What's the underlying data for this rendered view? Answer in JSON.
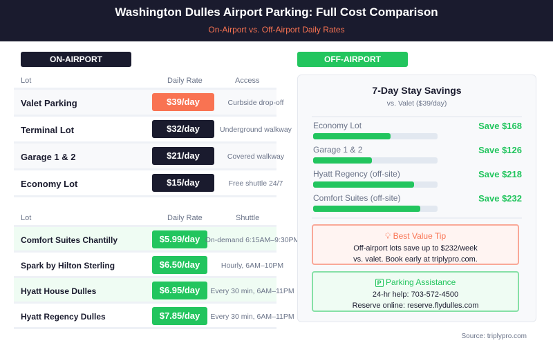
{
  "header": {
    "title": "Washington Dulles Airport Parking: Full Cost Comparison",
    "subtitle": "On-Airport vs. Off-Airport Daily Rates"
  },
  "on_airport": {
    "badge": "ON-AIRPORT",
    "columns": [
      "Lot",
      "Daily Rate",
      "Access"
    ],
    "rows": [
      {
        "lot": "Valet Parking",
        "rate": "$39/day",
        "access": "Curbside drop-off",
        "color": "#f97352"
      },
      {
        "lot": "Terminal Lot",
        "rate": "$32/day",
        "access": "Underground walkway",
        "color": "#1a1b2e"
      },
      {
        "lot": "Garage 1 & 2",
        "rate": "$21/day",
        "access": "Covered walkway",
        "color": "#1a1b2e"
      },
      {
        "lot": "Economy Lot",
        "rate": "$15/day",
        "access": "Free shuttle 24/7",
        "color": "#1a1b2e"
      }
    ]
  },
  "off_airport": {
    "badge": "OFF-AIRPORT",
    "columns": [
      "Lot",
      "Daily Rate",
      "Shuttle"
    ],
    "rows": [
      {
        "lot": "Comfort Suites Chantilly",
        "rate": "$5.99/day",
        "shuttle": "On-demand 6:15AM–9:30PM"
      },
      {
        "lot": "Spark by Hilton Sterling",
        "rate": "$6.50/day",
        "shuttle": "Hourly, 6AM–10PM"
      },
      {
        "lot": "Hyatt House Dulles",
        "rate": "$6.95/day",
        "shuttle": "Every 30 min, 6AM–11PM"
      },
      {
        "lot": "Hyatt Regency Dulles",
        "rate": "$7.85/day",
        "shuttle": "Every 30 min, 6AM–11PM"
      }
    ]
  },
  "savings": {
    "title": "7-Day Stay Savings",
    "subtitle": "vs. Valet ($39/day)",
    "items": [
      {
        "label": "Economy Lot",
        "value": "Save $168",
        "fraction": 0.62
      },
      {
        "label": "Garage 1 & 2",
        "value": "Save $126",
        "fraction": 0.47
      },
      {
        "label": "Hyatt Regency (off-site)",
        "value": "Save $218",
        "fraction": 0.81
      },
      {
        "label": "Comfort Suites (off-site)",
        "value": "Save $232",
        "fraction": 0.86
      }
    ]
  },
  "tip": {
    "icon": "lightbulb-icon",
    "title": "Best Value Tip",
    "line1": "Off-airport lots save up to $232/week",
    "line2": "vs. valet. Book early at triplypro.com."
  },
  "assist": {
    "icon": "parking-icon",
    "title": "Parking Assistance",
    "line1": "24-hr help: 703-572-4500",
    "line2": "Reserve online: reserve.flydulles.com"
  },
  "source": "Source: triplypro.com",
  "colors": {
    "navy": "#1a1b2e",
    "orange": "#f97352",
    "green": "#22c55e"
  }
}
